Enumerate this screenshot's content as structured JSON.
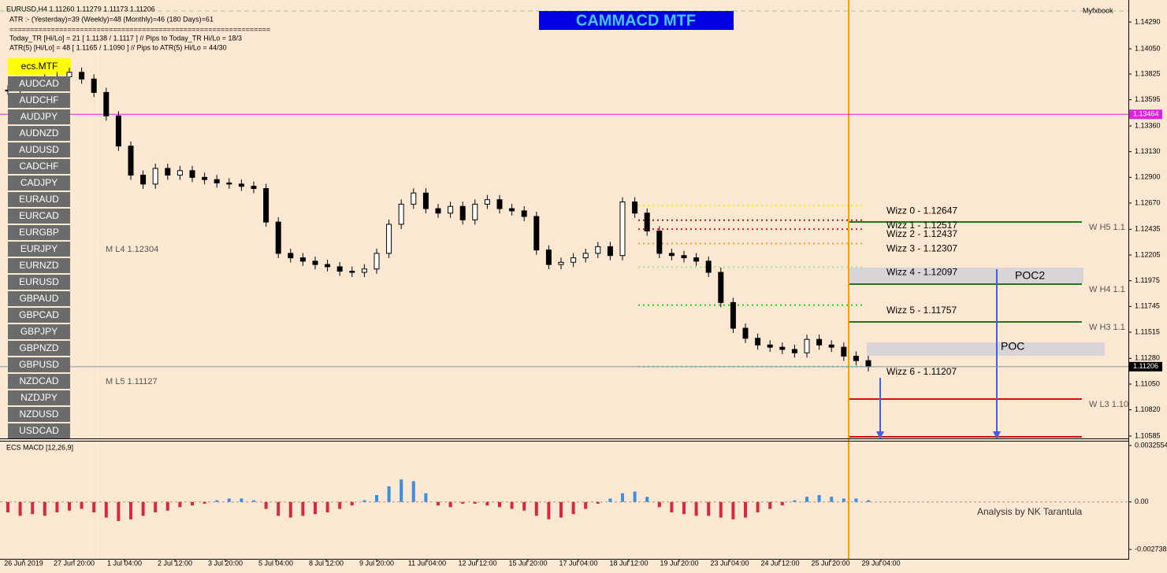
{
  "header": {
    "lines": [
      "EURUSD,H4  1.11260 1.11279 1.11173 1.11206",
      "ATR :- (Yesterday)=39      (Weekly)=48      (Monthly)=46      (180 Days)=61",
      "===============================================================",
      "Today_TR [Hi/Lo] = 21 [ 1.1138 / 1.1117 ]  // Pips to Today_TR Hi/Lo  = 18/3",
      "ATR(5)       [Hi/Lo] = 48 [ 1.1165 / 1.1090 ]  //  Pips to ATR(5) Hi/Lo      = 44/30"
    ],
    "title": "CAMMACD MTF",
    "broker": "Myfxbook"
  },
  "mtf_button": "ecs.MTF",
  "symbols": [
    "AUDCAD",
    "AUDCHF",
    "AUDJPY",
    "AUDNZD",
    "AUDUSD",
    "CADCHF",
    "CADJPY",
    "EURAUD",
    "EURCAD",
    "EURGBP",
    "EURJPY",
    "EURNZD",
    "EURUSD",
    "GBPAUD",
    "GBPCAD",
    "GBPJPY",
    "GBPNZD",
    "GBPUSD",
    "NZDCAD",
    "NZDJPY",
    "NZDUSD",
    "USDCAD"
  ],
  "price_axis": {
    "ylim": [
      1.10564,
      1.14487
    ],
    "ticks": [
      {
        "value": 1.1429,
        "label": "1.14290"
      },
      {
        "value": 1.1405,
        "label": "1.14050"
      },
      {
        "value": 1.13825,
        "label": "1.13825"
      },
      {
        "value": 1.13595,
        "label": "1.13595"
      },
      {
        "value": 1.1336,
        "label": "1.13360"
      },
      {
        "value": 1.1313,
        "label": "1.13130"
      },
      {
        "value": 1.129,
        "label": "1.12900"
      },
      {
        "value": 1.1267,
        "label": "1.12670"
      },
      {
        "value": 1.12435,
        "label": "1.12435"
      },
      {
        "value": 1.12205,
        "label": "1.12205"
      },
      {
        "value": 1.11975,
        "label": "1.11975"
      },
      {
        "value": 1.11745,
        "label": "1.11745"
      },
      {
        "value": 1.11515,
        "label": "1.11515"
      },
      {
        "value": 1.1128,
        "label": "1.11280"
      },
      {
        "value": 1.1105,
        "label": "1.11050"
      },
      {
        "value": 1.1082,
        "label": "1.10820"
      },
      {
        "value": 1.10585,
        "label": "1.10585"
      }
    ],
    "marker_price": 1.13464,
    "current_price": 1.11206
  },
  "time_axis": [
    "26 Jun 2019",
    "27 Jun 20:00",
    "1 Jul 04:00",
    "2 Jul 12:00",
    "3 Jul 20:00",
    "5 Jul 04:00",
    "8 Jul 12:00",
    "9 Jul 20:00",
    "11 Jul 04:00",
    "12 Jul 12:00",
    "15 Jul 20:00",
    "17 Jul 04:00",
    "18 Jul 12:00",
    "19 Jul 20:00",
    "23 Jul 04:00",
    "24 Jul 12:00",
    "25 Jul 20:00",
    "29 Jul 04:00"
  ],
  "candles": {
    "closes": [
      1.1368,
      1.1372,
      1.1375,
      1.1378,
      1.138,
      1.1384,
      1.1378,
      1.1366,
      1.1345,
      1.1318,
      1.1292,
      1.1284,
      1.1298,
      1.1292,
      1.1296,
      1.129,
      1.1288,
      1.1285,
      1.1284,
      1.1282,
      1.128,
      1.125,
      1.1222,
      1.1218,
      1.1215,
      1.1212,
      1.121,
      1.1206,
      1.1205,
      1.1208,
      1.1222,
      1.1248,
      1.1266,
      1.1276,
      1.1262,
      1.1258,
      1.1264,
      1.1252,
      1.1266,
      1.127,
      1.1262,
      1.126,
      1.1255,
      1.1225,
      1.1212,
      1.1214,
      1.1218,
      1.1222,
      1.1228,
      1.122,
      1.1268,
      1.1258,
      1.1242,
      1.1222,
      1.122,
      1.1218,
      1.1215,
      1.1205,
      1.1178,
      1.1155,
      1.1146,
      1.114,
      1.1138,
      1.1136,
      1.1133,
      1.1145,
      1.114,
      1.1138,
      1.113,
      1.1126,
      1.11206
    ]
  },
  "levels": [
    {
      "label": "Wizz 0 - 1.12647",
      "value": 1.12647,
      "color": "#f2f200"
    },
    {
      "label": "Wizz 1 - 1.12517",
      "value": 1.12517,
      "color": "#b01818"
    },
    {
      "label": "Wizz 2 - 1.12437",
      "value": 1.12437,
      "color": "#e02020"
    },
    {
      "label": "Wizz 3 - 1.12307",
      "value": 1.12307,
      "color": "#f0a020"
    },
    {
      "label": "Wizz 4 - 1.12097",
      "value": 1.12097,
      "color": "#98e898"
    },
    {
      "label": "Wizz 5 - 1.11757",
      "value": 1.11757,
      "color": "#20d020"
    },
    {
      "label": "Wizz 6 - 1.11207",
      "value": 1.11207,
      "color": "#40e0c0"
    }
  ],
  "annotations": {
    "poc2": "POC2",
    "poc": "POC",
    "wh5": "W  H5 1.1",
    "wh4": "W  H4 1.1",
    "wh3": "W  H3 1.1",
    "wl3": "W  L3 1.10",
    "ml4": "M  L4 1.12304",
    "ml5": "M  L5 1.11127",
    "macd_name": "ECS MACD [12,26,9]",
    "credit": "Analysis by NK Tarantula"
  },
  "macd": {
    "ylim": [
      -0.00328,
      0.00353
    ],
    "ticks": [
      0.0032554,
      {
        "value": 0,
        "label": "0.00"
      },
      -0.002738
    ],
    "positive_color": "#3a8fe0",
    "negative_color": "#d42a3a",
    "histogram": [
      -0.0006,
      -0.0008,
      -0.0007,
      -0.0008,
      -0.0006,
      -0.0005,
      -0.0004,
      -0.0006,
      -0.0009,
      -0.0011,
      -0.001,
      -0.0008,
      -0.0006,
      -0.0005,
      -0.0003,
      -0.0002,
      -0.0001,
      0.0001,
      0.0002,
      0.0002,
      0.0001,
      -0.0004,
      -0.0008,
      -0.0009,
      -0.0008,
      -0.0007,
      -0.0006,
      -0.0004,
      -0.0002,
      0.0001,
      0.0004,
      0.0009,
      0.0013,
      0.0012,
      0.0005,
      -0.0002,
      -0.0003,
      -0.0001,
      -0.0001,
      -0.0002,
      -0.0003,
      -0.0004,
      -0.0005,
      -0.0008,
      -0.001,
      -0.0009,
      -0.0007,
      -0.0004,
      -0.0001,
      0.0002,
      0.0005,
      0.0006,
      0.0003,
      -0.0003,
      -0.0006,
      -0.0007,
      -0.0008,
      -0.0008,
      -0.0009,
      -0.001,
      -0.0009,
      -0.0006,
      -0.0004,
      -0.0002,
      0.0001,
      0.0003,
      0.0004,
      0.0003,
      0.0002,
      0.0002,
      0.0001
    ]
  }
}
